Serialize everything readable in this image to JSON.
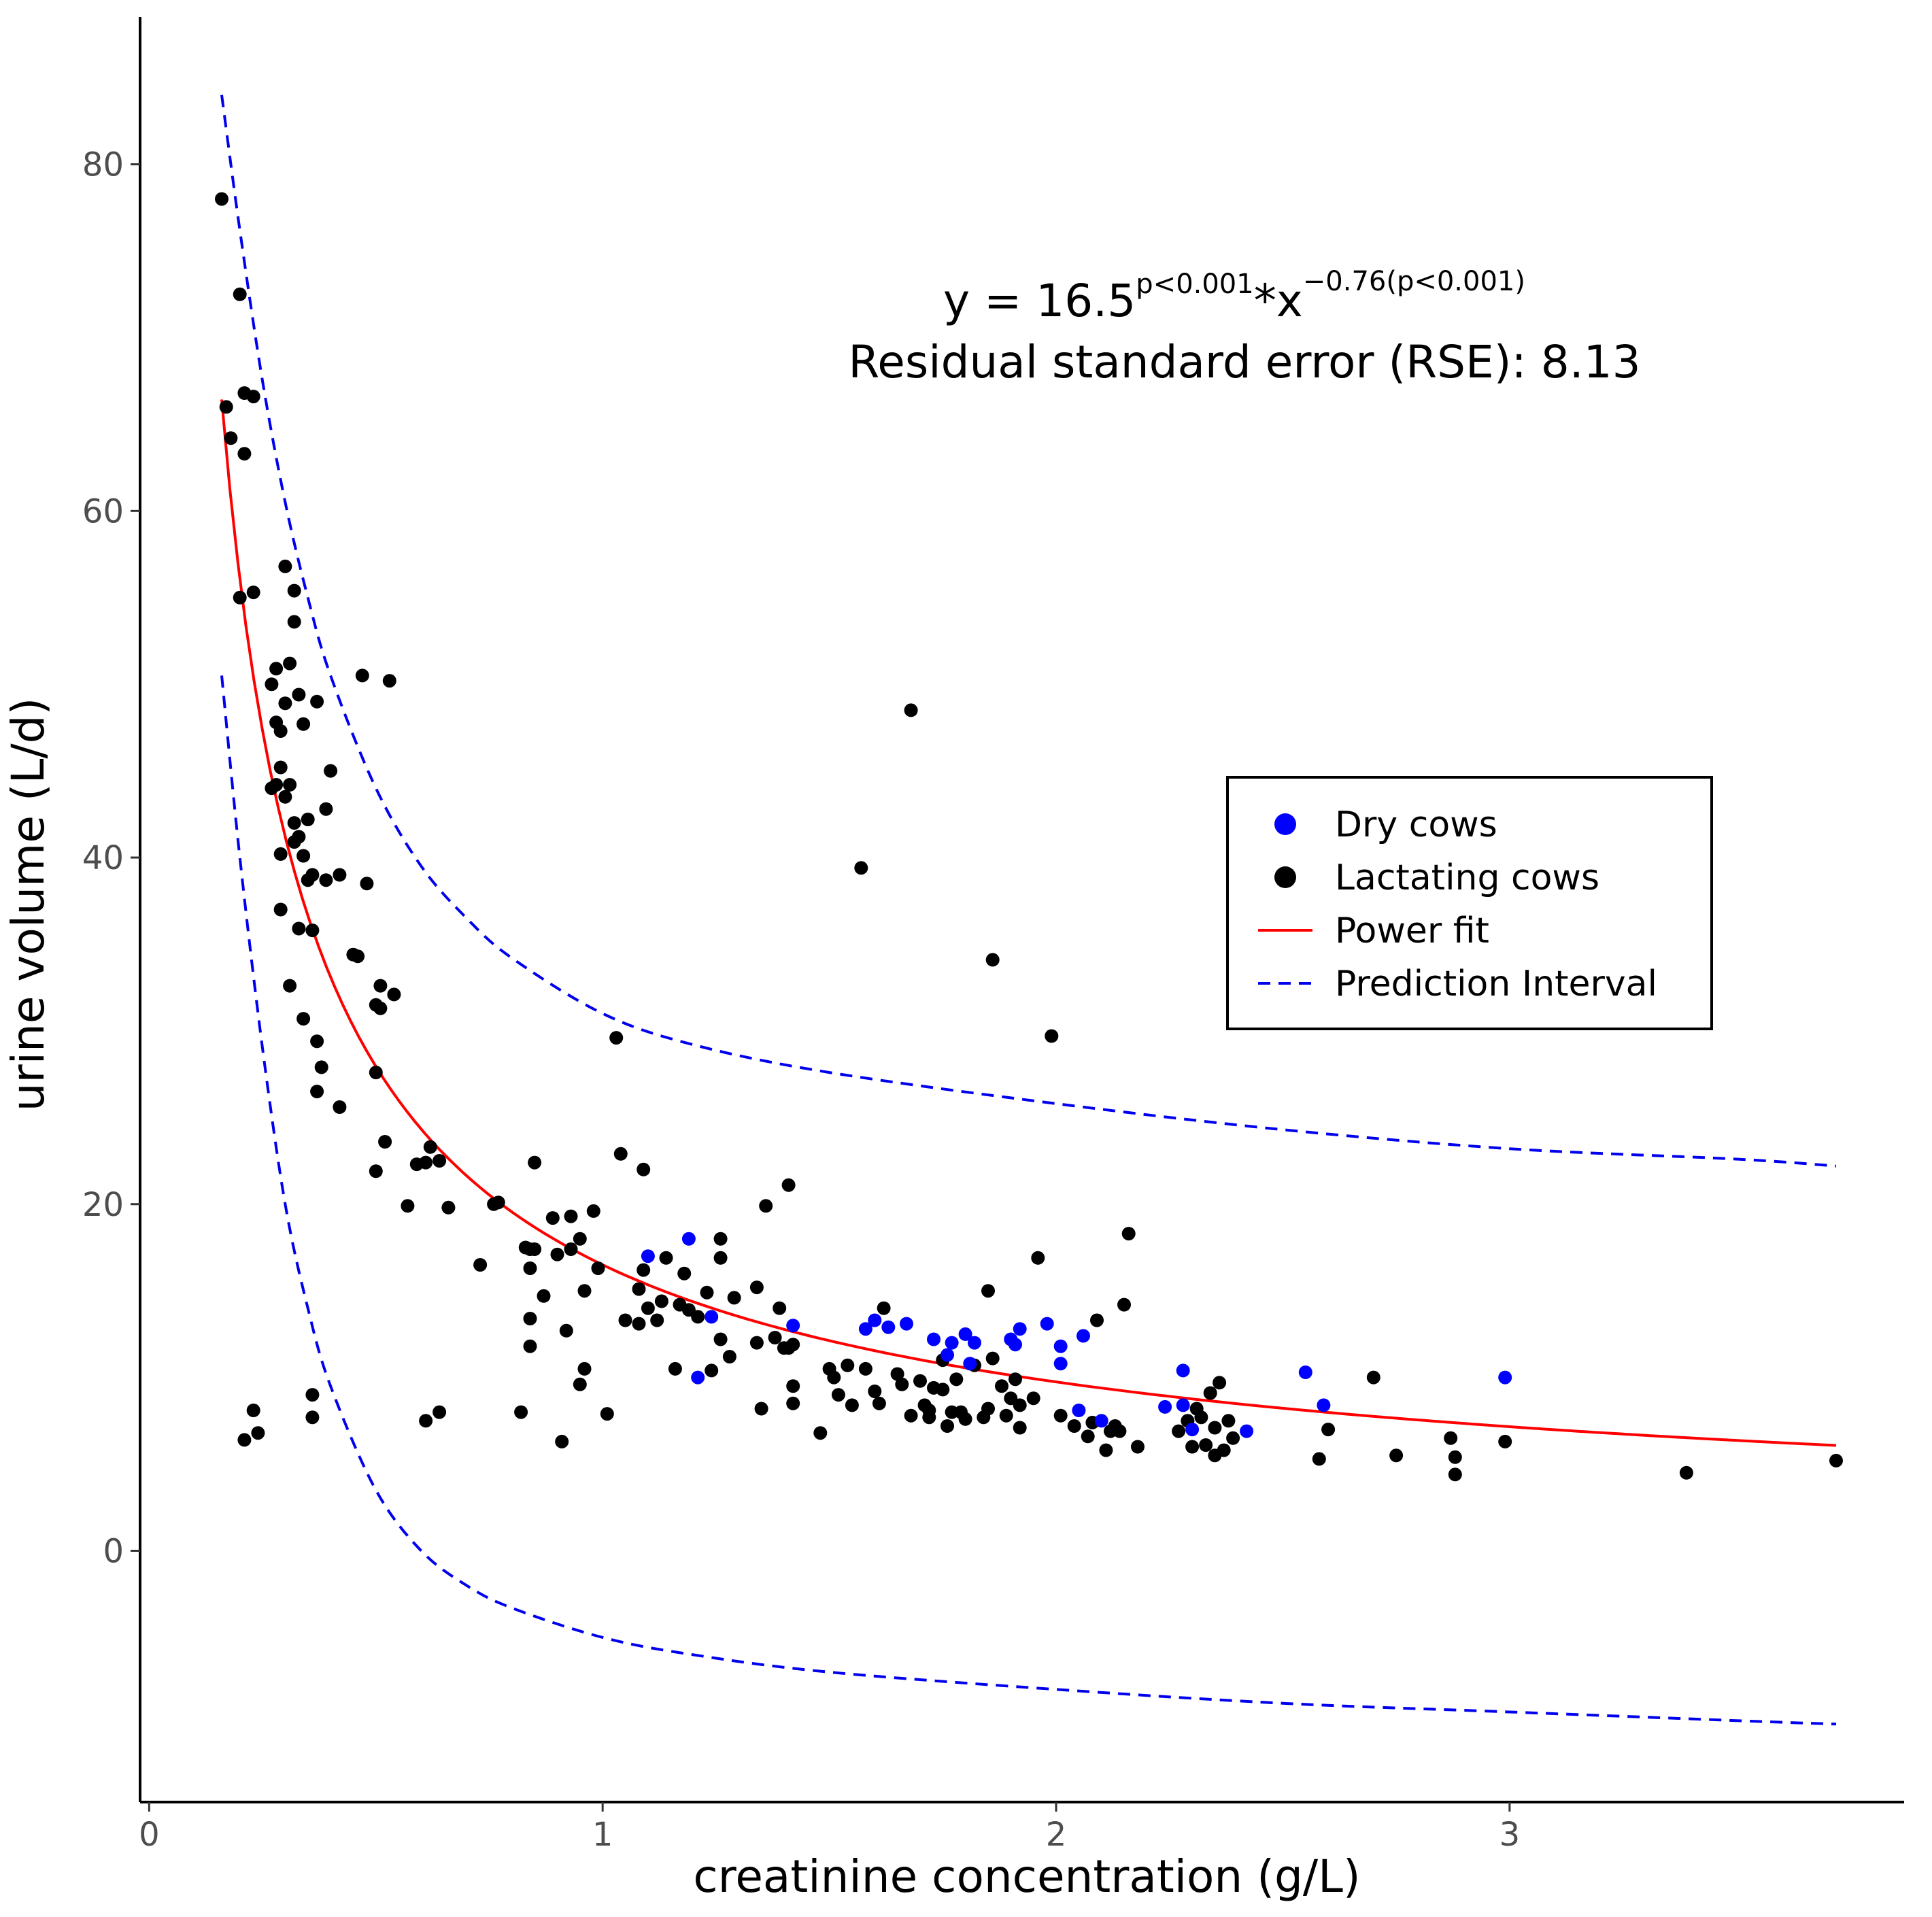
{
  "chart_data": {
    "type": "scatter",
    "xlabel": "creatinine concentration (g/L)",
    "ylabel": "urine volume (L/d)",
    "xlim": [
      -0.02,
      3.87
    ],
    "ylim": [
      -14.5,
      88.5
    ],
    "x_ticks": [
      0,
      1,
      2,
      3
    ],
    "y_ticks": [
      0,
      20,
      40,
      60,
      80
    ],
    "x_tick_labels": [
      "0",
      "1",
      "2",
      "3"
    ],
    "y_tick_labels": [
      "0",
      "20",
      "40",
      "60",
      "80"
    ],
    "grid": false,
    "annotation": {
      "line1_prefix": "y = 16.5",
      "line1_sup1": "p<0.001",
      "line1_mid": "*x",
      "line1_sup2": "−0.76(p<0.001)",
      "line2": "Residual standard error (RSE): 8.13"
    },
    "fit": {
      "name": "Power fit",
      "a": 16.5,
      "b": -0.76,
      "rse": 8.13,
      "x_range": [
        0.16,
        3.72
      ],
      "color": "#ff0000"
    },
    "prediction_interval": {
      "name": "Prediction Interval",
      "color": "#0000ee",
      "upper": [
        [
          0.16,
          84
        ],
        [
          0.2,
          76.2
        ],
        [
          0.25,
          67.5
        ],
        [
          0.3,
          60.5
        ],
        [
          0.35,
          55
        ],
        [
          0.4,
          50.5
        ],
        [
          0.5,
          44
        ],
        [
          0.6,
          39.5
        ],
        [
          0.7,
          36.5
        ],
        [
          0.8,
          34.2
        ],
        [
          1.0,
          31
        ],
        [
          1.2,
          29.2
        ],
        [
          1.5,
          27.6
        ],
        [
          2.0,
          25.8
        ],
        [
          2.5,
          24.3
        ],
        [
          3.0,
          23.2
        ],
        [
          3.5,
          22.6
        ],
        [
          3.72,
          22.2
        ]
      ],
      "lower": [
        [
          0.16,
          50.5
        ],
        [
          0.2,
          40
        ],
        [
          0.25,
          29
        ],
        [
          0.3,
          20
        ],
        [
          0.35,
          14
        ],
        [
          0.4,
          9.5
        ],
        [
          0.5,
          3.5
        ],
        [
          0.6,
          0
        ],
        [
          0.7,
          -2
        ],
        [
          0.8,
          -3.3
        ],
        [
          1.0,
          -5
        ],
        [
          1.2,
          -6
        ],
        [
          1.5,
          -7
        ],
        [
          2.0,
          -8
        ],
        [
          2.5,
          -8.8
        ],
        [
          3.0,
          -9.3
        ],
        [
          3.5,
          -9.8
        ],
        [
          3.72,
          -10
        ]
      ]
    },
    "legend": {
      "position": "right-center",
      "entries": [
        {
          "label": "Dry cows",
          "kind": "point",
          "color": "#0000ff"
        },
        {
          "label": "Lactating cows",
          "kind": "point",
          "color": "#000000"
        },
        {
          "label": "Power fit",
          "kind": "line",
          "color": "#ff0000"
        },
        {
          "label": "Prediction Interval",
          "kind": "dashed",
          "color": "#0000ee"
        }
      ]
    },
    "series": [
      {
        "name": "Dry cows",
        "color": "#0000ff",
        "points": [
          [
            1.1,
            17
          ],
          [
            1.19,
            18
          ],
          [
            1.21,
            10
          ],
          [
            1.24,
            13.5
          ],
          [
            1.42,
            13
          ],
          [
            1.58,
            12.8
          ],
          [
            1.6,
            13.3
          ],
          [
            1.63,
            12.9
          ],
          [
            1.67,
            13.1
          ],
          [
            1.73,
            12.2
          ],
          [
            1.76,
            11.3
          ],
          [
            1.77,
            12
          ],
          [
            1.8,
            12.5
          ],
          [
            1.81,
            10.8
          ],
          [
            1.82,
            12
          ],
          [
            1.9,
            12.2
          ],
          [
            1.91,
            11.9
          ],
          [
            1.92,
            12.8
          ],
          [
            1.98,
            13.1
          ],
          [
            2.01,
            11.8
          ],
          [
            2.01,
            10.8
          ],
          [
            2.06,
            12.4
          ],
          [
            2.05,
            8.1
          ],
          [
            2.1,
            7.5
          ],
          [
            2.24,
            8.3
          ],
          [
            2.28,
            10.4
          ],
          [
            2.28,
            8.4
          ],
          [
            2.3,
            7
          ],
          [
            2.42,
            6.9
          ],
          [
            2.55,
            10.3
          ],
          [
            2.59,
            8.4
          ],
          [
            2.99,
            10
          ]
        ]
      },
      {
        "name": "Lactating cows",
        "color": "#000000",
        "points": [
          [
            0.16,
            78
          ],
          [
            0.2,
            72.5
          ],
          [
            0.17,
            66
          ],
          [
            0.21,
            66.8
          ],
          [
            0.23,
            66.6
          ],
          [
            0.18,
            64.2
          ],
          [
            0.21,
            63.3
          ],
          [
            0.2,
            55
          ],
          [
            0.23,
            55.3
          ],
          [
            0.3,
            56.8
          ],
          [
            0.32,
            55.4
          ],
          [
            0.32,
            53.6
          ],
          [
            0.31,
            51.2
          ],
          [
            0.28,
            50.9
          ],
          [
            0.27,
            50
          ],
          [
            0.3,
            48.9
          ],
          [
            0.33,
            49.4
          ],
          [
            0.37,
            49
          ],
          [
            0.34,
            47.7
          ],
          [
            0.28,
            47.8
          ],
          [
            0.29,
            47.3
          ],
          [
            0.29,
            45.2
          ],
          [
            0.31,
            44.2
          ],
          [
            0.28,
            44.2
          ],
          [
            0.27,
            44
          ],
          [
            0.3,
            43.5
          ],
          [
            0.32,
            42
          ],
          [
            0.33,
            41.2
          ],
          [
            0.32,
            40.9
          ],
          [
            0.29,
            40.2
          ],
          [
            0.34,
            40.1
          ],
          [
            0.35,
            38.7
          ],
          [
            0.36,
            39
          ],
          [
            0.39,
            38.7
          ],
          [
            0.4,
            45
          ],
          [
            0.39,
            42.8
          ],
          [
            0.35,
            42.2
          ],
          [
            0.42,
            39
          ],
          [
            0.29,
            37
          ],
          [
            0.33,
            35.9
          ],
          [
            0.36,
            35.8
          ],
          [
            0.45,
            34.4
          ],
          [
            0.46,
            34.3
          ],
          [
            0.31,
            32.6
          ],
          [
            0.34,
            30.7
          ],
          [
            0.37,
            29.4
          ],
          [
            0.38,
            27.9
          ],
          [
            0.37,
            26.5
          ],
          [
            0.42,
            25.6
          ],
          [
            0.48,
            38.5
          ],
          [
            0.47,
            50.5
          ],
          [
            0.53,
            50.2
          ],
          [
            0.5,
            31.5
          ],
          [
            0.51,
            31.3
          ],
          [
            0.51,
            32.6
          ],
          [
            0.54,
            32.1
          ],
          [
            0.5,
            27.6
          ],
          [
            0.5,
            21.9
          ],
          [
            0.52,
            23.6
          ],
          [
            0.57,
            19.9
          ],
          [
            0.59,
            22.3
          ],
          [
            0.61,
            22.4
          ],
          [
            0.62,
            23.3
          ],
          [
            0.64,
            22.5
          ],
          [
            0.66,
            19.8
          ],
          [
            0.73,
            16.5
          ],
          [
            0.76,
            20
          ],
          [
            0.77,
            20.1
          ],
          [
            0.83,
            17.5
          ],
          [
            0.84,
            17.4
          ],
          [
            0.85,
            17.4
          ],
          [
            0.84,
            16.3
          ],
          [
            0.85,
            22.4
          ],
          [
            0.87,
            14.7
          ],
          [
            0.89,
            19.2
          ],
          [
            0.9,
            17.1
          ],
          [
            0.93,
            17.4
          ],
          [
            0.93,
            19.3
          ],
          [
            0.95,
            18
          ],
          [
            0.96,
            15
          ],
          [
            0.98,
            19.6
          ],
          [
            0.99,
            16.3
          ],
          [
            0.92,
            12.7
          ],
          [
            0.84,
            13.4
          ],
          [
            0.84,
            11.8
          ],
          [
            0.82,
            8
          ],
          [
            0.91,
            6.3
          ],
          [
            0.95,
            9.6
          ],
          [
            0.96,
            10.5
          ],
          [
            1.01,
            7.9
          ],
          [
            1.04,
            22.9
          ],
          [
            1.09,
            22
          ],
          [
            1.03,
            29.6
          ],
          [
            1.05,
            13.3
          ],
          [
            1.08,
            13.1
          ],
          [
            1.08,
            15.1
          ],
          [
            1.09,
            16.2
          ],
          [
            1.1,
            14
          ],
          [
            1.12,
            13.3
          ],
          [
            1.13,
            14.4
          ],
          [
            1.14,
            16.9
          ],
          [
            1.16,
            10.5
          ],
          [
            1.17,
            14.2
          ],
          [
            1.18,
            16
          ],
          [
            1.19,
            13.9
          ],
          [
            1.21,
            13.5
          ],
          [
            1.23,
            14.9
          ],
          [
            1.24,
            10.4
          ],
          [
            1.26,
            18
          ],
          [
            1.26,
            16.9
          ],
          [
            1.26,
            12.2
          ],
          [
            1.28,
            11.2
          ],
          [
            1.29,
            14.6
          ],
          [
            1.34,
            15.2
          ],
          [
            1.34,
            12
          ],
          [
            1.35,
            8.2
          ],
          [
            1.36,
            19.9
          ],
          [
            1.38,
            12.3
          ],
          [
            1.39,
            14
          ],
          [
            1.4,
            11.7
          ],
          [
            1.41,
            11.7
          ],
          [
            1.42,
            11.9
          ],
          [
            1.42,
            9.5
          ],
          [
            1.41,
            21.1
          ],
          [
            1.42,
            8.5
          ],
          [
            1.48,
            6.8
          ],
          [
            1.5,
            10.5
          ],
          [
            1.51,
            10
          ],
          [
            1.52,
            9
          ],
          [
            1.54,
            10.7
          ],
          [
            1.55,
            8.4
          ],
          [
            1.57,
            39.4
          ],
          [
            1.58,
            10.5
          ],
          [
            1.6,
            9.2
          ],
          [
            1.61,
            8.5
          ],
          [
            1.62,
            14
          ],
          [
            1.65,
            10.2
          ],
          [
            1.66,
            9.6
          ],
          [
            1.68,
            7.8
          ],
          [
            1.68,
            48.5
          ],
          [
            1.7,
            9.8
          ],
          [
            1.71,
            8.4
          ],
          [
            1.72,
            8.1
          ],
          [
            1.72,
            7.7
          ],
          [
            1.73,
            9.4
          ],
          [
            1.75,
            9.3
          ],
          [
            1.75,
            11
          ],
          [
            1.76,
            7.2
          ],
          [
            1.77,
            8
          ],
          [
            1.78,
            9.9
          ],
          [
            1.79,
            8
          ],
          [
            1.8,
            7.6
          ],
          [
            1.82,
            10.7
          ],
          [
            1.84,
            7.7
          ],
          [
            1.85,
            8.2
          ],
          [
            1.85,
            15
          ],
          [
            1.86,
            11.1
          ],
          [
            1.86,
            34.1
          ],
          [
            1.88,
            9.5
          ],
          [
            1.89,
            7.8
          ],
          [
            1.9,
            8.8
          ],
          [
            1.91,
            9.9
          ],
          [
            1.92,
            7.1
          ],
          [
            1.92,
            8.4
          ],
          [
            1.95,
            8.8
          ],
          [
            1.96,
            16.9
          ],
          [
            1.99,
            29.7
          ],
          [
            2.01,
            7.8
          ],
          [
            2.04,
            7.2
          ],
          [
            2.07,
            6.6
          ],
          [
            2.08,
            7.4
          ],
          [
            2.09,
            13.3
          ],
          [
            2.11,
            5.8
          ],
          [
            2.12,
            6.9
          ],
          [
            2.13,
            7.2
          ],
          [
            2.14,
            6.9
          ],
          [
            2.15,
            14.2
          ],
          [
            2.16,
            18.3
          ],
          [
            2.18,
            6
          ],
          [
            2.27,
            6.9
          ],
          [
            2.29,
            7.5
          ],
          [
            2.3,
            6
          ],
          [
            2.31,
            8.2
          ],
          [
            2.32,
            7.7
          ],
          [
            2.33,
            6.1
          ],
          [
            2.34,
            9.1
          ],
          [
            2.35,
            5.5
          ],
          [
            2.36,
            9.7
          ],
          [
            2.37,
            5.8
          ],
          [
            2.38,
            7.5
          ],
          [
            2.39,
            6.5
          ],
          [
            2.35,
            7.1
          ],
          [
            2.58,
            5.3
          ],
          [
            2.6,
            7
          ],
          [
            2.7,
            10
          ],
          [
            2.75,
            5.5
          ],
          [
            2.87,
            6.5
          ],
          [
            2.88,
            5.4
          ],
          [
            2.88,
            4.4
          ],
          [
            2.99,
            6.3
          ],
          [
            3.39,
            4.5
          ],
          [
            3.72,
            5.2
          ],
          [
            0.21,
            6.4
          ],
          [
            0.23,
            8.1
          ],
          [
            0.24,
            6.8
          ],
          [
            0.36,
            9
          ],
          [
            0.36,
            7.7
          ],
          [
            0.61,
            7.5
          ],
          [
            0.64,
            8
          ]
        ]
      }
    ]
  }
}
